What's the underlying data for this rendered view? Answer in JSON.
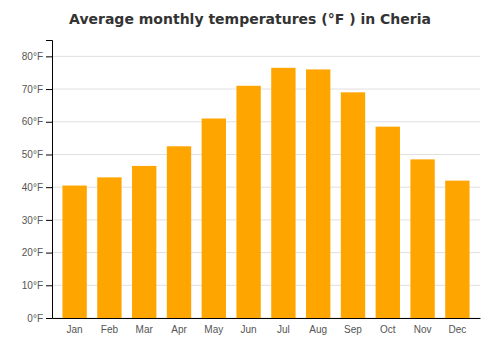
{
  "chart_data": {
    "type": "bar",
    "title": "Average monthly temperatures (°F ) in Cheria",
    "categories": [
      "Jan",
      "Feb",
      "Mar",
      "Apr",
      "May",
      "Jun",
      "Jul",
      "Aug",
      "Sep",
      "Oct",
      "Nov",
      "Dec"
    ],
    "values": [
      40.5,
      43.0,
      46.5,
      52.5,
      61.0,
      71.0,
      76.5,
      76.0,
      69.0,
      58.5,
      48.5,
      42.0
    ],
    "color": "#FFA500",
    "ylim": [
      0,
      85
    ],
    "yticks": [
      {
        "value": 0,
        "label": "0°F"
      },
      {
        "value": 10,
        "label": "10°F"
      },
      {
        "value": 20,
        "label": "20°F"
      },
      {
        "value": 30,
        "label": "30°F"
      },
      {
        "value": 40,
        "label": "40°F"
      },
      {
        "value": 50,
        "label": "50°F"
      },
      {
        "value": 60,
        "label": "60°F"
      },
      {
        "value": 70,
        "label": "70°F"
      },
      {
        "value": 80,
        "label": "80°F"
      }
    ],
    "grid": true
  }
}
